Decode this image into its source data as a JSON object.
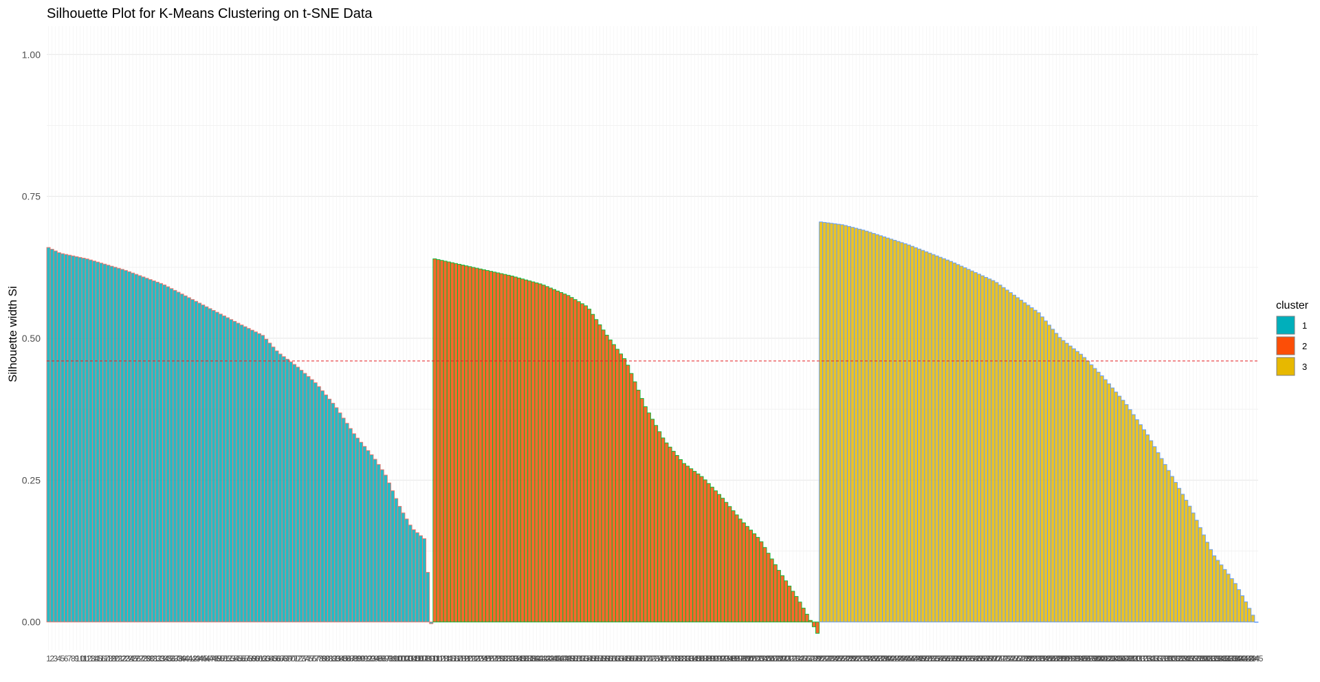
{
  "chart_data": {
    "type": "bar",
    "title": "Silhouette Plot for K-Means Clustering on t-SNE Data",
    "xlabel": "",
    "ylabel": "Silhouette width Si",
    "ylim": [
      -0.05,
      1.05
    ],
    "yticks": [
      0.0,
      0.25,
      0.5,
      0.75,
      1.0
    ],
    "ytick_labels": [
      "0.00",
      "0.25",
      "0.50",
      "0.75",
      "1.00"
    ],
    "average_silhouette": 0.46,
    "grid": true,
    "legend": {
      "title": "cluster",
      "placement": "right",
      "entries": [
        {
          "label": "1",
          "color": "#00AFBB"
        },
        {
          "label": "2",
          "color": "#FC4E07"
        },
        {
          "label": "3",
          "color": "#E7B800"
        }
      ]
    },
    "series": [
      {
        "cluster": "1",
        "fill": "#00AFBB",
        "outline": "#F8766D",
        "points": 110,
        "profile": [
          [
            0,
            0.66
          ],
          [
            0.03,
            0.65
          ],
          [
            0.1,
            0.64
          ],
          [
            0.2,
            0.62
          ],
          [
            0.3,
            0.595
          ],
          [
            0.4,
            0.56
          ],
          [
            0.5,
            0.525
          ],
          [
            0.56,
            0.505
          ],
          [
            0.6,
            0.475
          ],
          [
            0.65,
            0.45
          ],
          [
            0.7,
            0.42
          ],
          [
            0.75,
            0.38
          ],
          [
            0.8,
            0.33
          ],
          [
            0.85,
            0.29
          ],
          [
            0.88,
            0.26
          ],
          [
            0.92,
            0.2
          ],
          [
            0.95,
            0.165
          ],
          [
            0.985,
            0.145
          ],
          [
            1.0,
            -0.003
          ]
        ]
      },
      {
        "cluster": "2",
        "fill": "#FC4E07",
        "outline": "#00BA38",
        "points": 110,
        "profile": [
          [
            0,
            0.64
          ],
          [
            0.1,
            0.625
          ],
          [
            0.2,
            0.61
          ],
          [
            0.28,
            0.595
          ],
          [
            0.35,
            0.575
          ],
          [
            0.4,
            0.555
          ],
          [
            0.45,
            0.505
          ],
          [
            0.5,
            0.46
          ],
          [
            0.55,
            0.38
          ],
          [
            0.6,
            0.32
          ],
          [
            0.65,
            0.28
          ],
          [
            0.7,
            0.255
          ],
          [
            0.75,
            0.22
          ],
          [
            0.8,
            0.18
          ],
          [
            0.85,
            0.145
          ],
          [
            0.9,
            0.09
          ],
          [
            0.95,
            0.04
          ],
          [
            0.98,
            0.005
          ],
          [
            1.0,
            -0.02
          ]
        ]
      },
      {
        "cluster": "3",
        "fill": "#E7B800",
        "outline": "#619CFF",
        "points": 125,
        "profile": [
          [
            0,
            0.705
          ],
          [
            0.05,
            0.7
          ],
          [
            0.1,
            0.69
          ],
          [
            0.2,
            0.665
          ],
          [
            0.3,
            0.635
          ],
          [
            0.4,
            0.6
          ],
          [
            0.5,
            0.545
          ],
          [
            0.55,
            0.5
          ],
          [
            0.6,
            0.47
          ],
          [
            0.65,
            0.43
          ],
          [
            0.7,
            0.385
          ],
          [
            0.75,
            0.33
          ],
          [
            0.8,
            0.265
          ],
          [
            0.85,
            0.2
          ],
          [
            0.9,
            0.12
          ],
          [
            0.95,
            0.07
          ],
          [
            0.98,
            0.03
          ],
          [
            1.0,
            0.0
          ]
        ]
      }
    ]
  }
}
